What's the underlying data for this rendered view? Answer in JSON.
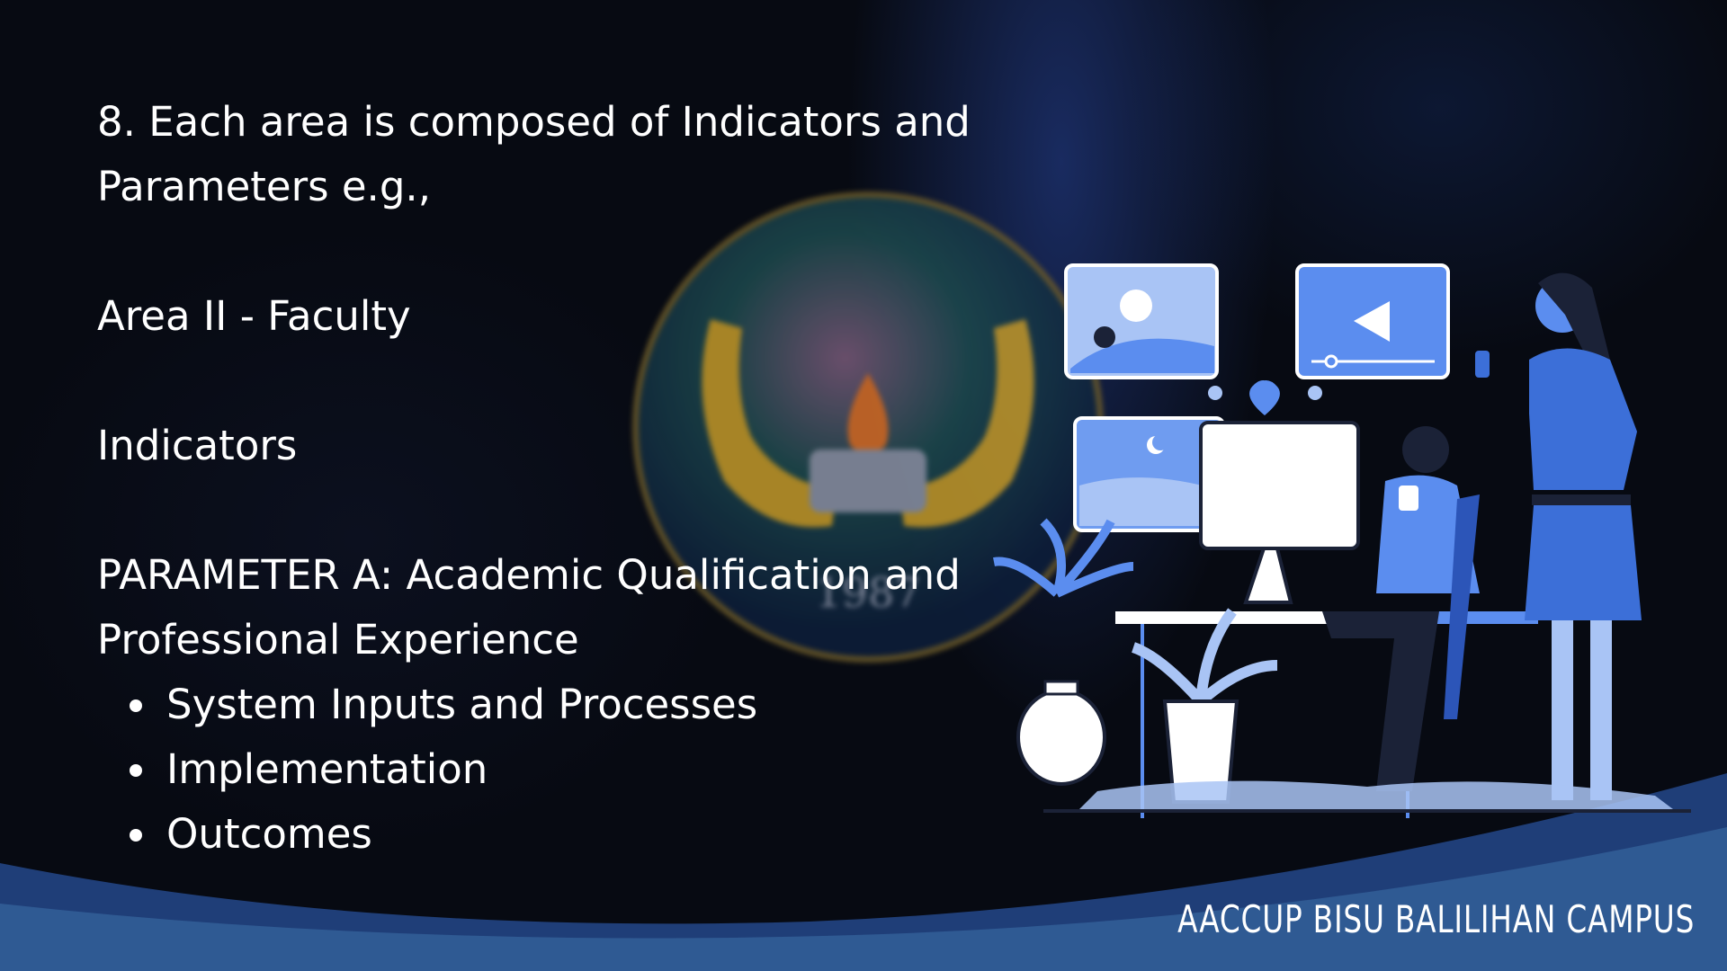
{
  "slide": {
    "heading_line1": "8. Each area is composed of Indicators and",
    "heading_line2": "Parameters e.g.,",
    "area": "Area II - Faculty",
    "indicators_label": "Indicators",
    "parameter_line1": "PARAMETER  A:  Academic  Qualification  and",
    "parameter_line2": "Professional Experience",
    "bullets": [
      "System Inputs and Processes",
      "Implementation",
      "Outcomes"
    ]
  },
  "seal": {
    "year": "1987"
  },
  "footer": {
    "text": "AACCUP BISU BALILIHAN CAMPUS"
  },
  "colors": {
    "background": "#070a12",
    "accent_blue": "#5b8def",
    "wave_dark": "#1f3e78",
    "wave_light": "#2f5a93"
  }
}
